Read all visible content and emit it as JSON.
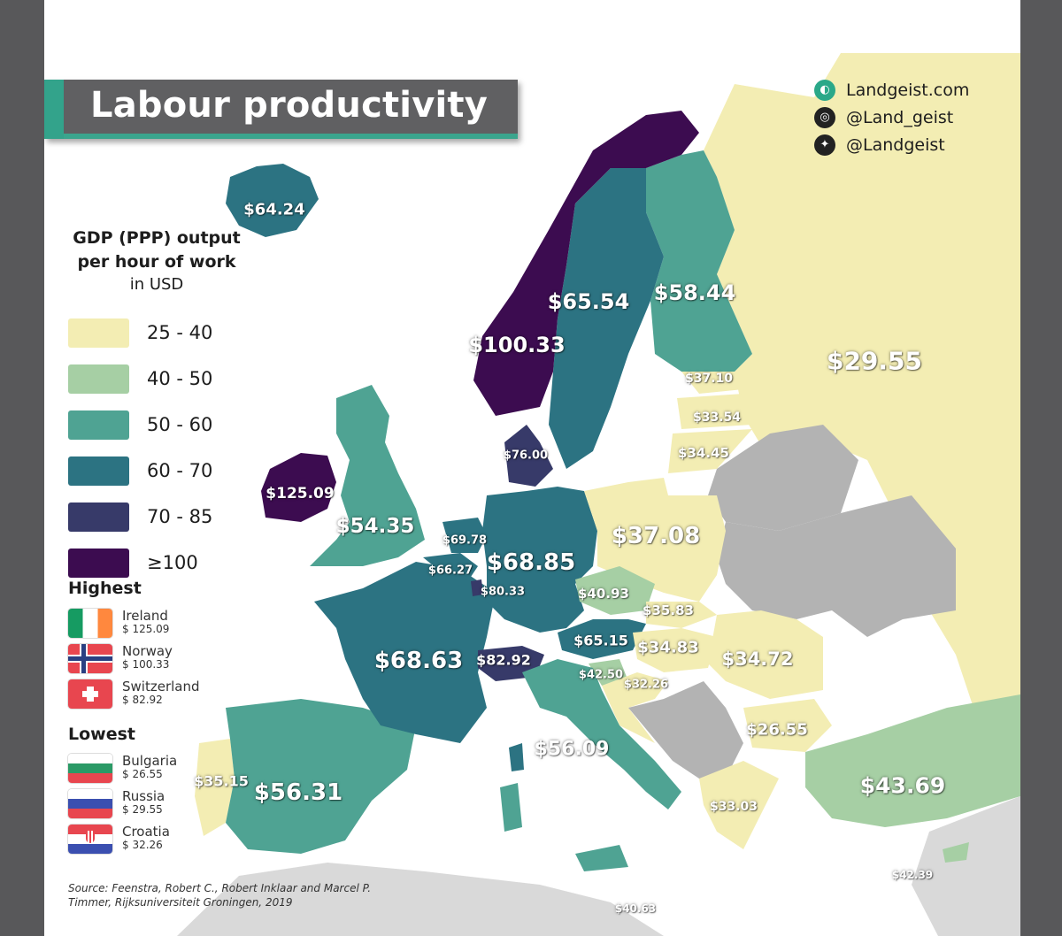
{
  "title": "Labour productivity",
  "social": [
    {
      "icon": "globe-icon",
      "text": "Landgeist.com"
    },
    {
      "icon": "instagram-icon",
      "text": "@Land_geist"
    },
    {
      "icon": "twitter-icon",
      "text": "@Landgeist"
    }
  ],
  "legend": {
    "title_line1": "GDP (PPP) output",
    "title_line2": "per hour of work",
    "unit": "in USD",
    "bins": [
      {
        "label": "25 - 40",
        "color": "#f3edb3"
      },
      {
        "label": "40 - 50",
        "color": "#a6cfa4"
      },
      {
        "label": "50 - 60",
        "color": "#4fa393"
      },
      {
        "label": "60 - 70",
        "color": "#2c7382"
      },
      {
        "label": "70 - 85",
        "color": "#373a69"
      },
      {
        "label": "≥100",
        "color": "#3c0c50"
      }
    ]
  },
  "highest": {
    "heading": "Highest",
    "items": [
      {
        "country": "Ireland",
        "value": "$ 125.09"
      },
      {
        "country": "Norway",
        "value": "$ 100.33"
      },
      {
        "country": "Switzerland",
        "value": "$ 82.92"
      }
    ]
  },
  "lowest": {
    "heading": "Lowest",
    "items": [
      {
        "country": "Bulgaria",
        "value": "$ 26.55"
      },
      {
        "country": "Russia",
        "value": "$ 29.55"
      },
      {
        "country": "Croatia",
        "value": "$ 32.26"
      }
    ]
  },
  "source": {
    "line1": "Source: Feenstra, Robert C., Robert Inklaar and Marcel P.",
    "line2": "Timmer, Rijksuniversiteit Groningen, 2019"
  },
  "map_colors": {
    "no_data": "#b3b3b3",
    "sea": "#ffffff"
  },
  "map_values": [
    {
      "id": "iceland",
      "text": "$64.24"
    },
    {
      "id": "norway",
      "text": "$100.33"
    },
    {
      "id": "sweden",
      "text": "$65.54"
    },
    {
      "id": "finland",
      "text": "$58.44"
    },
    {
      "id": "russia",
      "text": "$29.55"
    },
    {
      "id": "estonia",
      "text": "$37.10"
    },
    {
      "id": "latvia",
      "text": "$33.54"
    },
    {
      "id": "lithuania",
      "text": "$34.45"
    },
    {
      "id": "denmark",
      "text": "$76.00"
    },
    {
      "id": "ireland",
      "text": "$125.09"
    },
    {
      "id": "uk",
      "text": "$54.35"
    },
    {
      "id": "netherlands",
      "text": "$69.78"
    },
    {
      "id": "belgium",
      "text": "$66.27"
    },
    {
      "id": "luxembourg",
      "text": "$80.33"
    },
    {
      "id": "germany",
      "text": "$68.85"
    },
    {
      "id": "poland",
      "text": "$37.08"
    },
    {
      "id": "czechia",
      "text": "$40.93"
    },
    {
      "id": "slovakia",
      "text": "$35.83"
    },
    {
      "id": "austria",
      "text": "$65.15"
    },
    {
      "id": "hungary",
      "text": "$34.83"
    },
    {
      "id": "romania",
      "text": "$34.72"
    },
    {
      "id": "slovenia",
      "text": "$42.50"
    },
    {
      "id": "croatia",
      "text": "$32.26"
    },
    {
      "id": "switzerland",
      "text": "$82.92"
    },
    {
      "id": "france",
      "text": "$68.63"
    },
    {
      "id": "italy",
      "text": "$56.09"
    },
    {
      "id": "bulgaria",
      "text": "$26.55"
    },
    {
      "id": "greece",
      "text": "$33.03"
    },
    {
      "id": "turkey",
      "text": "$43.69"
    },
    {
      "id": "cyprus",
      "text": "$42.39"
    },
    {
      "id": "malta",
      "text": "$40.63"
    },
    {
      "id": "portugal",
      "text": "$35.15"
    },
    {
      "id": "spain",
      "text": "$56.31"
    }
  ]
}
